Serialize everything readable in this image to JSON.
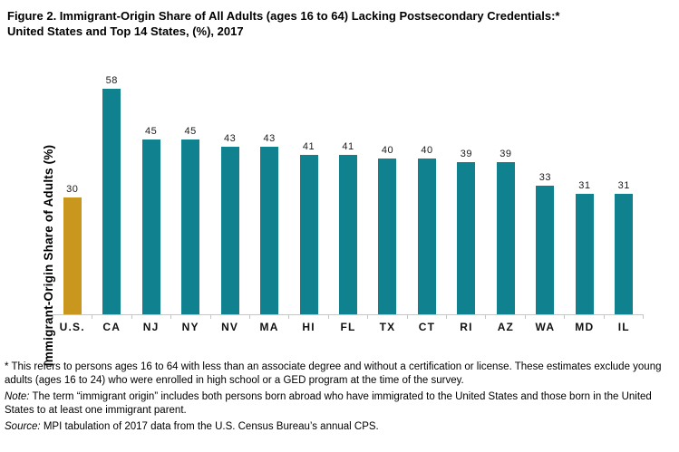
{
  "title": {
    "line1": "Figure 2. Immigrant-Origin Share of All Adults (ages 16 to 64) Lacking Postsecondary Credentials:*",
    "line2": "United States and Top 14 States, (%), 2017"
  },
  "chart_data": {
    "type": "bar",
    "title": "Figure 2. Immigrant-Origin Share of All Adults (ages 16 to 64) Lacking Postsecondary Credentials: United States and Top 14 States, (%), 2017",
    "categories": [
      "U.S.",
      "CA",
      "NJ",
      "NY",
      "NV",
      "MA",
      "HI",
      "FL",
      "TX",
      "CT",
      "RI",
      "AZ",
      "WA",
      "MD",
      "IL"
    ],
    "values": [
      30,
      58,
      45,
      45,
      43,
      43,
      41,
      41,
      40,
      40,
      39,
      39,
      33,
      31,
      31
    ],
    "xlabel": "",
    "ylabel": "Immigrant-Origin Share of Adults (%)",
    "ylim": [
      0,
      62
    ],
    "grid": false,
    "value_labels": true,
    "legend": "none",
    "highlight_index": 0,
    "colors": {
      "highlight_bar": "#C9961E",
      "default_bar": "#10818E",
      "axis_line": "#C6C6C6",
      "value_label_text": "#1A1A1A",
      "category_label_text": "#111111"
    }
  },
  "footnotes": {
    "asterisk": "* This refers to persons ages 16 to 64 with less than an associate degree and without a certification or license. These estimates exclude young adults (ages 16 to 24) who were enrolled in high school or a GED program at the time of the survey.",
    "note_label": "Note:",
    "note_text": " The term “immigrant origin” includes both persons born abroad who have immigrated to the United States and those born in the United States to at least one immigrant parent.",
    "source_label": "Source:",
    "source_text": " MPI tabulation of 2017 data from the U.S. Census Bureau’s annual CPS."
  }
}
